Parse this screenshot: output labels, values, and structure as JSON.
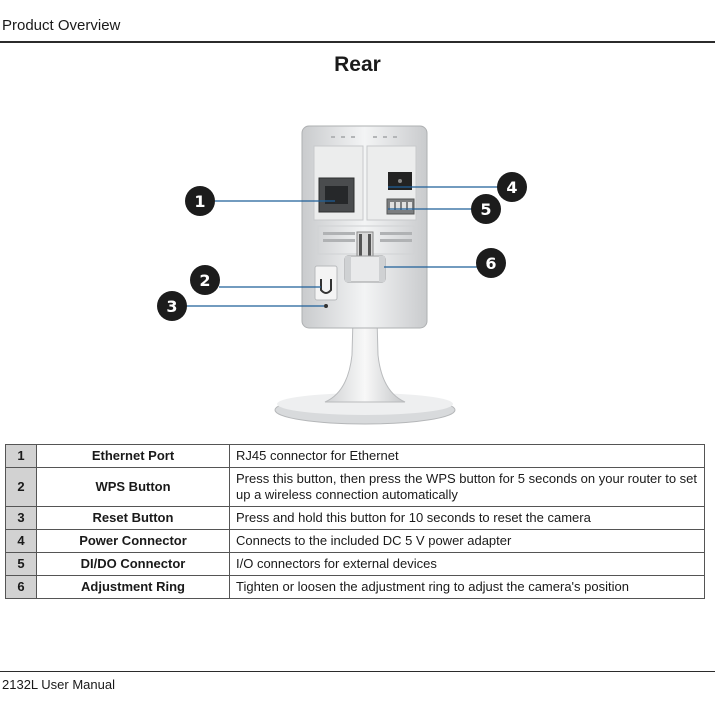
{
  "header": {
    "section_title": "Product Overview"
  },
  "page_title": "Rear",
  "callouts": [
    "1",
    "2",
    "3",
    "4",
    "5",
    "6"
  ],
  "parts": [
    {
      "number": "1",
      "name": "Ethernet Port",
      "description": "RJ45 connector for Ethernet"
    },
    {
      "number": "2",
      "name": "WPS Button",
      "description": "Press this button, then press the WPS button for 5 seconds on your router to set up a wireless connection automatically"
    },
    {
      "number": "3",
      "name": "Reset Button",
      "description": "Press and hold this button for 10 seconds to reset the camera"
    },
    {
      "number": "4",
      "name": "Power Connector",
      "description": "Connects to the included DC 5 V power adapter"
    },
    {
      "number": "5",
      "name": "DI/DO Connector",
      "description": "I/O connectors for external devices"
    },
    {
      "number": "6",
      "name": "Adjustment Ring",
      "description": "Tighten or loosen the adjustment ring to adjust the camera's position"
    }
  ],
  "footer": {
    "manual_name": "2132L User Manual"
  },
  "colors": {
    "callout_fill": "#1c1c1c",
    "leader_line": "#1f5f99",
    "number_cell": "#d2d2d2",
    "rule": "#2b2b2b"
  }
}
